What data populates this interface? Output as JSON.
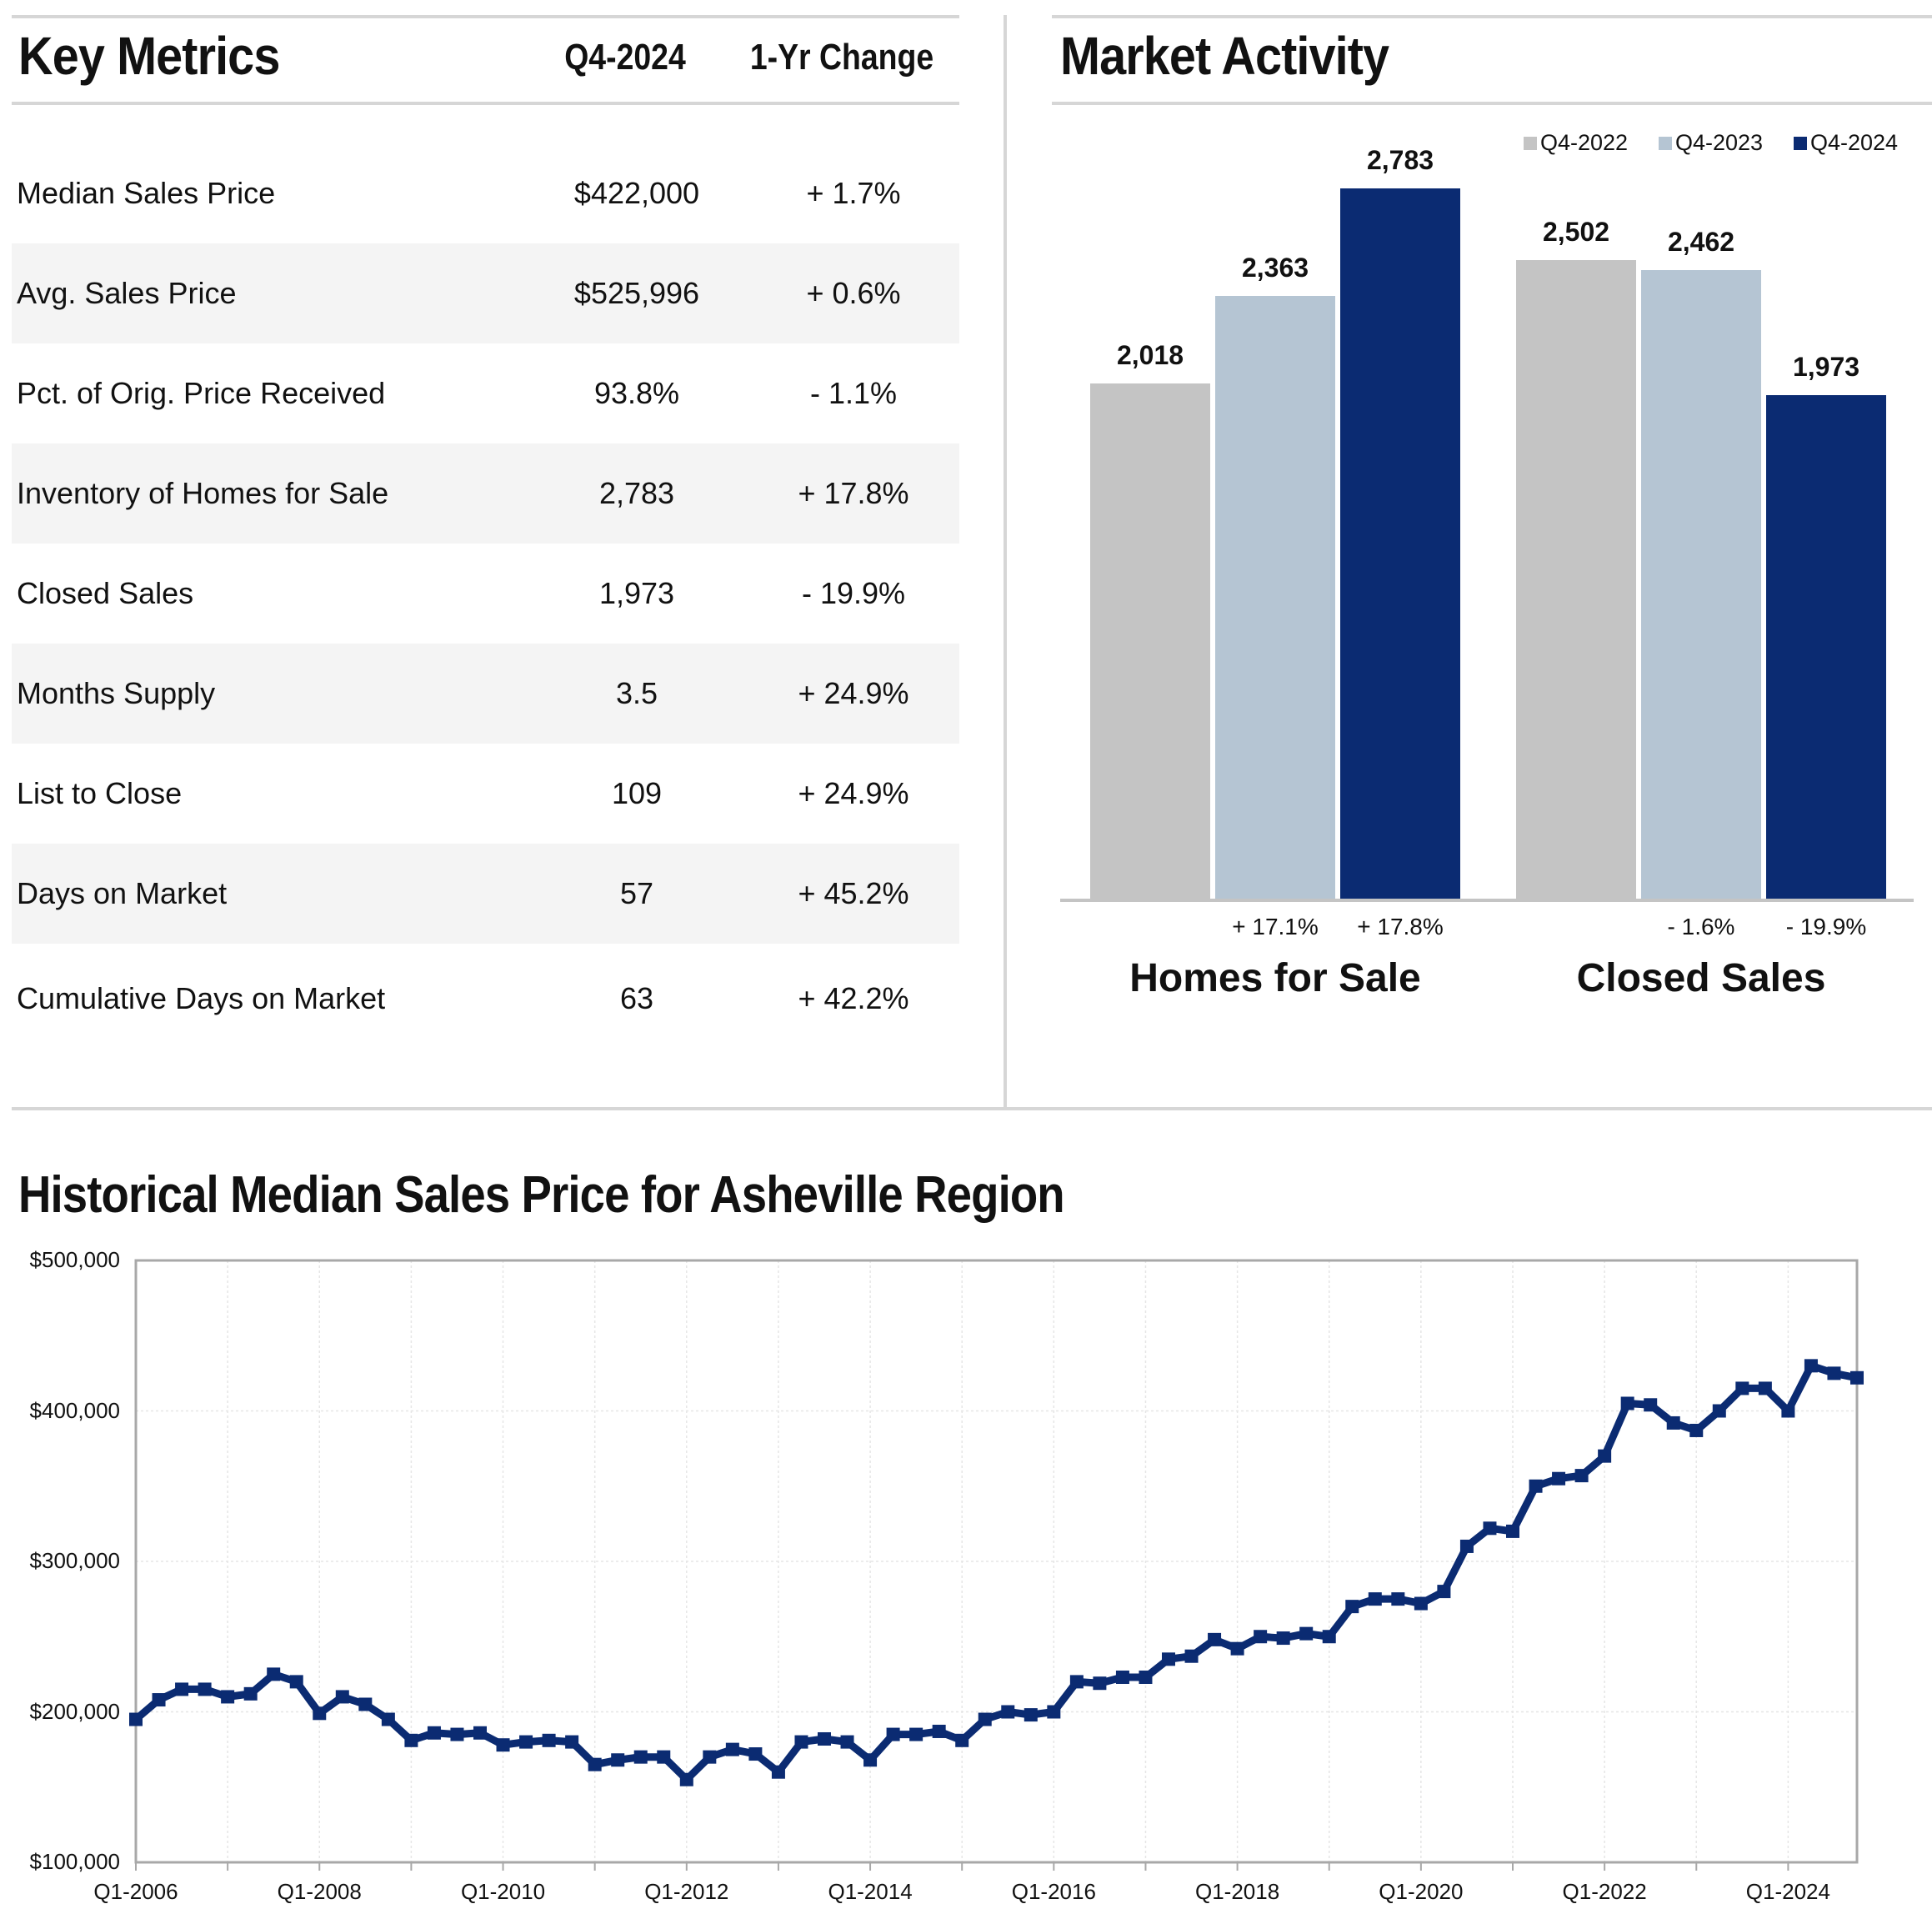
{
  "key_metrics": {
    "title": "Key Metrics",
    "col_period": "Q4-2024",
    "col_change": "1-Yr Change",
    "rows": [
      {
        "label": "Median Sales Price",
        "value": "$422,000",
        "change": "+ 1.7%"
      },
      {
        "label": "Avg. Sales Price",
        "value": "$525,996",
        "change": "+ 0.6%"
      },
      {
        "label": "Pct. of Orig. Price Received",
        "value": "93.8%",
        "change": "- 1.1%"
      },
      {
        "label": "Inventory of Homes for Sale",
        "value": "2,783",
        "change": "+ 17.8%"
      },
      {
        "label": "Closed Sales",
        "value": "1,973",
        "change": "- 19.9%"
      },
      {
        "label": "Months Supply",
        "value": "3.5",
        "change": "+ 24.9%"
      },
      {
        "label": "List to Close",
        "value": "109",
        "change": "+ 24.9%"
      },
      {
        "label": "Days on Market",
        "value": "57",
        "change": "+ 45.2%"
      },
      {
        "label": "Cumulative Days on Market",
        "value": "63",
        "change": "+ 42.2%"
      }
    ]
  },
  "chart_data": [
    {
      "type": "bar",
      "title": "Market Activity",
      "categories": [
        "Homes for Sale",
        "Closed Sales"
      ],
      "series": [
        {
          "name": "Q4-2022",
          "values": [
            2018,
            2502
          ],
          "labels": [
            "2,018",
            "2,502"
          ],
          "changes": [
            "",
            ""
          ],
          "color": "#c4c4c4"
        },
        {
          "name": "Q4-2023",
          "values": [
            2363,
            2462
          ],
          "labels": [
            "2,363",
            "2,462"
          ],
          "changes": [
            "+ 17.1%",
            "- 1.6%"
          ],
          "color": "#b5c5d3"
        },
        {
          "name": "Q4-2024",
          "values": [
            2783,
            1973
          ],
          "labels": [
            "2,783",
            "1,973"
          ],
          "changes": [
            "+ 17.8%",
            "- 19.9%"
          ],
          "color": "#0b2b72"
        }
      ],
      "ylim": [
        0,
        2900
      ],
      "legend": "top-right"
    },
    {
      "type": "line",
      "title": "Historical Median Sales Price for Asheville Region",
      "x_ticks": [
        "Q1-2006",
        "Q1-2008",
        "Q1-2010",
        "Q1-2012",
        "Q1-2014",
        "Q1-2016",
        "Q1-2018",
        "Q1-2020",
        "Q1-2022",
        "Q1-2024"
      ],
      "y_ticks": [
        "$500,000",
        "$400,000",
        "$300,000",
        "$200,000",
        "$100,000"
      ],
      "ylim": [
        100000,
        500000
      ],
      "grid": true,
      "series": [
        {
          "name": "",
          "color": "#0b2b72",
          "x": [
            "Q1-2006",
            "Q2-2006",
            "Q3-2006",
            "Q4-2006",
            "Q1-2007",
            "Q2-2007",
            "Q3-2007",
            "Q4-2007",
            "Q1-2008",
            "Q2-2008",
            "Q3-2008",
            "Q4-2008",
            "Q1-2009",
            "Q2-2009",
            "Q3-2009",
            "Q4-2009",
            "Q1-2010",
            "Q2-2010",
            "Q3-2010",
            "Q4-2010",
            "Q1-2011",
            "Q2-2011",
            "Q3-2011",
            "Q4-2011",
            "Q1-2012",
            "Q2-2012",
            "Q3-2012",
            "Q4-2012",
            "Q1-2013",
            "Q2-2013",
            "Q3-2013",
            "Q4-2013",
            "Q1-2014",
            "Q2-2014",
            "Q3-2014",
            "Q4-2014",
            "Q1-2015",
            "Q2-2015",
            "Q3-2015",
            "Q4-2015",
            "Q1-2016",
            "Q2-2016",
            "Q3-2016",
            "Q4-2016",
            "Q1-2017",
            "Q2-2017",
            "Q3-2017",
            "Q4-2017",
            "Q1-2018",
            "Q2-2018",
            "Q3-2018",
            "Q4-2018",
            "Q1-2019",
            "Q2-2019",
            "Q3-2019",
            "Q4-2019",
            "Q1-2020",
            "Q2-2020",
            "Q3-2020",
            "Q4-2020",
            "Q1-2021",
            "Q2-2021",
            "Q3-2021",
            "Q4-2021",
            "Q1-2022",
            "Q2-2022",
            "Q3-2022",
            "Q4-2022",
            "Q1-2023",
            "Q2-2023",
            "Q3-2023",
            "Q4-2023",
            "Q1-2024",
            "Q2-2024",
            "Q3-2024",
            "Q4-2024"
          ],
          "values": [
            195000,
            208000,
            215000,
            215000,
            210000,
            212000,
            225000,
            220000,
            199000,
            210000,
            205000,
            195000,
            181000,
            186000,
            185000,
            186000,
            178000,
            180000,
            181000,
            180000,
            165000,
            168000,
            170000,
            170000,
            155000,
            170000,
            175000,
            172000,
            160000,
            180000,
            182000,
            180000,
            168000,
            185000,
            185000,
            187000,
            181000,
            195000,
            200000,
            198000,
            200000,
            220000,
            219000,
            223000,
            223000,
            235000,
            237000,
            248000,
            242000,
            250000,
            249000,
            252000,
            250000,
            270000,
            275000,
            275000,
            272000,
            280000,
            310000,
            322000,
            320000,
            350000,
            355000,
            357000,
            370000,
            405000,
            404000,
            392000,
            387000,
            400000,
            415000,
            415000,
            400000,
            430000,
            425000,
            422000
          ]
        }
      ]
    }
  ]
}
